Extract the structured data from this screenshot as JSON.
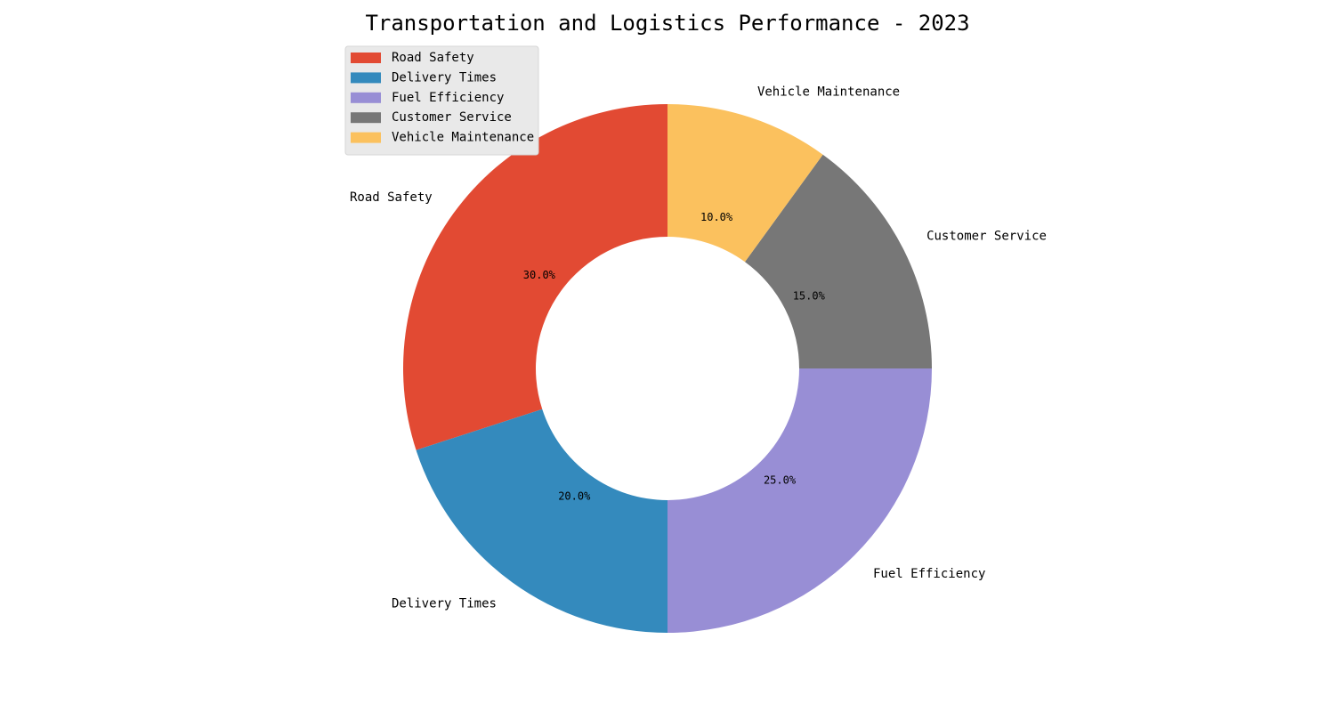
{
  "chart_data": {
    "type": "pie",
    "donut": true,
    "title": "Transportation and Logistics Performance - 2023",
    "categories": [
      "Road Safety",
      "Delivery Times",
      "Fuel Efficiency",
      "Customer Service",
      "Vehicle Maintenance"
    ],
    "values": [
      30,
      20,
      25,
      15,
      10
    ],
    "percent_labels": [
      "30.0%",
      "20.0%",
      "25.0%",
      "15.0%",
      "10.0%"
    ],
    "colors": [
      "#E24A33",
      "#348ABD",
      "#988ED5",
      "#777777",
      "#FBC15E"
    ],
    "legend": {
      "placement": "upper-left",
      "entries": [
        "Road Safety",
        "Delivery Times",
        "Fuel Efficiency",
        "Customer Service",
        "Vehicle Maintenance"
      ]
    },
    "start_angle_deg": 90,
    "direction": "counterclockwise"
  }
}
